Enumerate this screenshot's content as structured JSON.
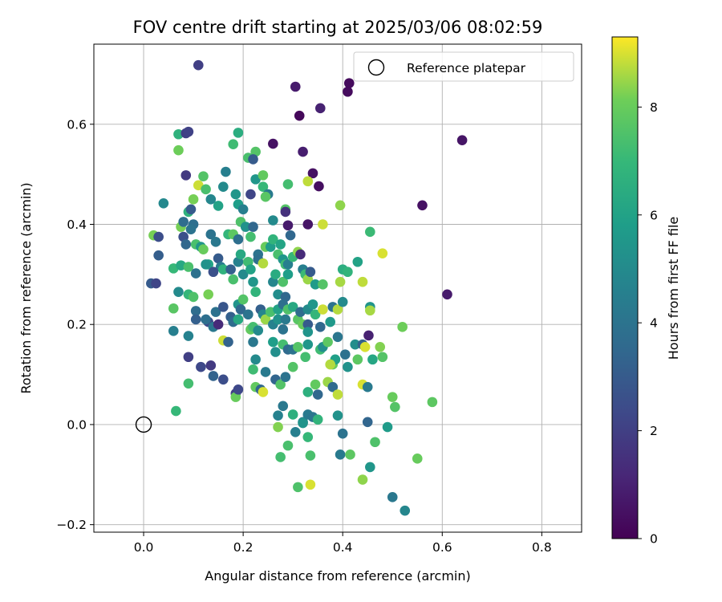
{
  "chart_data": {
    "type": "scatter",
    "title": "FOV centre drift starting at 2025/03/06 08:02:59",
    "xlabel": "Angular distance from reference (arcmin)",
    "ylabel": "Rotation from reference (arcmin)",
    "xlim": [
      -0.1,
      0.88
    ],
    "ylim": [
      -0.215,
      0.76
    ],
    "xticks": [
      0.0,
      0.2,
      0.4,
      0.6,
      0.8
    ],
    "xtick_labels": [
      "0.0",
      "0.2",
      "0.4",
      "0.6",
      "0.8"
    ],
    "yticks": [
      -0.2,
      0.0,
      0.2,
      0.4,
      0.6
    ],
    "ytick_labels": [
      "−0.2",
      "0.0",
      "0.2",
      "0.4",
      "0.6"
    ],
    "grid": true,
    "legend": {
      "label": "Reference platepar",
      "location": "top-right"
    },
    "reference_point": {
      "x": 0.0,
      "y": 0.0
    },
    "colorbar": {
      "label": "Hours from first FF file",
      "colormap": "viridis",
      "range": [
        0,
        9.3
      ],
      "ticks": [
        0,
        2,
        4,
        6,
        8
      ],
      "tick_labels": [
        "0",
        "2",
        "4",
        "6",
        "8"
      ]
    },
    "points": [
      [
        0.11,
        0.718,
        2.0
      ],
      [
        0.305,
        0.675,
        0.8
      ],
      [
        0.413,
        0.682,
        0.3
      ],
      [
        0.41,
        0.665,
        0.3
      ],
      [
        0.355,
        0.632,
        1.0
      ],
      [
        0.313,
        0.617,
        0.2
      ],
      [
        0.64,
        0.568,
        0.6
      ],
      [
        0.26,
        0.561,
        0.5
      ],
      [
        0.32,
        0.545,
        0.9
      ],
      [
        0.34,
        0.502,
        0.5
      ],
      [
        0.352,
        0.476,
        0.4
      ],
      [
        0.56,
        0.438,
        0.5
      ],
      [
        0.33,
        0.4,
        0.6
      ],
      [
        0.61,
        0.26,
        0.8
      ],
      [
        0.452,
        0.178,
        1.0
      ],
      [
        0.07,
        0.58,
        6.7
      ],
      [
        0.085,
        0.582,
        2.0
      ],
      [
        0.09,
        0.585,
        2.1
      ],
      [
        0.19,
        0.583,
        6.5
      ],
      [
        0.225,
        0.545,
        7.6
      ],
      [
        0.21,
        0.533,
        7.4
      ],
      [
        0.22,
        0.53,
        3.0
      ],
      [
        0.18,
        0.56,
        7.2
      ],
      [
        0.07,
        0.548,
        8.1
      ],
      [
        0.085,
        0.498,
        1.8
      ],
      [
        0.04,
        0.442,
        4.9
      ],
      [
        0.11,
        0.478,
        8.9
      ],
      [
        0.12,
        0.496,
        7.6
      ],
      [
        0.125,
        0.47,
        7.4
      ],
      [
        0.1,
        0.45,
        8.2
      ],
      [
        0.135,
        0.45,
        4.8
      ],
      [
        0.15,
        0.437,
        6.0
      ],
      [
        0.16,
        0.475,
        5.0
      ],
      [
        0.165,
        0.505,
        4.5
      ],
      [
        0.185,
        0.46,
        5.5
      ],
      [
        0.19,
        0.44,
        5.8
      ],
      [
        0.2,
        0.43,
        4.5
      ],
      [
        0.215,
        0.46,
        2.2
      ],
      [
        0.225,
        0.49,
        5.5
      ],
      [
        0.24,
        0.498,
        7.9
      ],
      [
        0.24,
        0.475,
        7.0
      ],
      [
        0.25,
        0.46,
        4.3
      ],
      [
        0.245,
        0.455,
        7.7
      ],
      [
        0.29,
        0.48,
        7.3
      ],
      [
        0.285,
        0.43,
        7.6
      ],
      [
        0.285,
        0.425,
        1.5
      ],
      [
        0.26,
        0.408,
        5.0
      ],
      [
        0.29,
        0.398,
        0.8
      ],
      [
        0.295,
        0.378,
        3.5
      ],
      [
        0.33,
        0.486,
        8.8
      ],
      [
        0.36,
        0.4,
        8.9
      ],
      [
        0.395,
        0.438,
        8.4
      ],
      [
        0.075,
        0.395,
        8.2
      ],
      [
        0.09,
        0.425,
        6.7
      ],
      [
        0.095,
        0.43,
        3.0
      ],
      [
        0.08,
        0.405,
        3.7
      ],
      [
        0.1,
        0.4,
        3.8
      ],
      [
        0.08,
        0.375,
        2.6
      ],
      [
        0.095,
        0.39,
        4.0
      ],
      [
        0.085,
        0.36,
        3.5
      ],
      [
        0.105,
        0.36,
        7.4
      ],
      [
        0.115,
        0.355,
        5.5
      ],
      [
        0.12,
        0.35,
        8.0
      ],
      [
        0.135,
        0.38,
        4.0
      ],
      [
        0.13,
        0.32,
        6.1
      ],
      [
        0.145,
        0.365,
        4.2
      ],
      [
        0.15,
        0.332,
        3.0
      ],
      [
        0.155,
        0.315,
        4.3
      ],
      [
        0.17,
        0.38,
        6.9
      ],
      [
        0.18,
        0.38,
        7.8
      ],
      [
        0.19,
        0.37,
        3.8
      ],
      [
        0.195,
        0.405,
        7.5
      ],
      [
        0.205,
        0.395,
        5.3
      ],
      [
        0.215,
        0.375,
        7.3
      ],
      [
        0.22,
        0.395,
        3.5
      ],
      [
        0.23,
        0.34,
        4.0
      ],
      [
        0.245,
        0.355,
        8.0
      ],
      [
        0.255,
        0.355,
        5.8
      ],
      [
        0.26,
        0.37,
        6.8
      ],
      [
        0.27,
        0.34,
        7.4
      ],
      [
        0.275,
        0.36,
        6.1
      ],
      [
        0.28,
        0.33,
        5.5
      ],
      [
        0.285,
        0.32,
        7.2
      ],
      [
        0.29,
        0.32,
        4.5
      ],
      [
        0.3,
        0.335,
        7.0
      ],
      [
        0.31,
        0.345,
        8.4
      ],
      [
        0.315,
        0.34,
        1.3
      ],
      [
        0.32,
        0.31,
        4.5
      ],
      [
        0.325,
        0.3,
        7.1
      ],
      [
        0.33,
        0.29,
        8.5
      ],
      [
        0.335,
        0.305,
        3.0
      ],
      [
        0.345,
        0.28,
        5.7
      ],
      [
        0.36,
        0.28,
        7.6
      ],
      [
        0.395,
        0.285,
        8.6
      ],
      [
        0.4,
        0.31,
        6.5
      ],
      [
        0.41,
        0.305,
        6.8
      ],
      [
        0.43,
        0.325,
        6.0
      ],
      [
        0.44,
        0.285,
        8.8
      ],
      [
        0.48,
        0.342,
        9.0
      ],
      [
        0.455,
        0.385,
        7.1
      ],
      [
        0.02,
        0.378,
        8.2
      ],
      [
        0.03,
        0.375,
        2.5
      ],
      [
        0.03,
        0.338,
        3.1
      ],
      [
        0.06,
        0.312,
        7.0
      ],
      [
        0.075,
        0.318,
        6.3
      ],
      [
        0.09,
        0.315,
        7.4
      ],
      [
        0.105,
        0.302,
        3.9
      ],
      [
        0.125,
        0.32,
        5.3
      ],
      [
        0.14,
        0.305,
        2.6
      ],
      [
        0.16,
        0.31,
        6.7
      ],
      [
        0.175,
        0.31,
        3.2
      ],
      [
        0.18,
        0.29,
        7.4
      ],
      [
        0.19,
        0.325,
        4.6
      ],
      [
        0.195,
        0.34,
        6.3
      ],
      [
        0.2,
        0.3,
        5.0
      ],
      [
        0.21,
        0.325,
        7.2
      ],
      [
        0.215,
        0.31,
        6.0
      ],
      [
        0.22,
        0.285,
        5.5
      ],
      [
        0.23,
        0.33,
        3.8
      ],
      [
        0.24,
        0.322,
        8.7
      ],
      [
        0.26,
        0.285,
        4.8
      ],
      [
        0.265,
        0.3,
        6.4
      ],
      [
        0.27,
        0.26,
        5.1
      ],
      [
        0.28,
        0.285,
        7.5
      ],
      [
        0.285,
        0.255,
        3.5
      ],
      [
        0.29,
        0.3,
        5.8
      ],
      [
        0.015,
        0.282,
        3.0
      ],
      [
        0.025,
        0.282,
        2.2
      ],
      [
        0.06,
        0.232,
        7.7
      ],
      [
        0.09,
        0.26,
        6.9
      ],
      [
        0.105,
        0.227,
        3.7
      ],
      [
        0.105,
        0.21,
        3.2
      ],
      [
        0.13,
        0.26,
        8.2
      ],
      [
        0.13,
        0.205,
        2.4
      ],
      [
        0.145,
        0.225,
        3.9
      ],
      [
        0.16,
        0.235,
        2.8
      ],
      [
        0.175,
        0.215,
        3.2
      ],
      [
        0.18,
        0.205,
        3.7
      ],
      [
        0.19,
        0.24,
        5.4
      ],
      [
        0.19,
        0.21,
        6.3
      ],
      [
        0.195,
        0.23,
        3.5
      ],
      [
        0.2,
        0.25,
        7.6
      ],
      [
        0.21,
        0.22,
        4.0
      ],
      [
        0.215,
        0.19,
        7.9
      ],
      [
        0.22,
        0.195,
        7.3
      ],
      [
        0.225,
        0.265,
        6.8
      ],
      [
        0.235,
        0.23,
        3.2
      ],
      [
        0.24,
        0.22,
        4.8
      ],
      [
        0.245,
        0.21,
        8.5
      ],
      [
        0.255,
        0.225,
        7.4
      ],
      [
        0.26,
        0.2,
        4.6
      ],
      [
        0.27,
        0.21,
        5.3
      ],
      [
        0.27,
        0.23,
        6.0
      ],
      [
        0.28,
        0.24,
        3.8
      ],
      [
        0.285,
        0.21,
        4.3
      ],
      [
        0.29,
        0.23,
        7.5
      ],
      [
        0.3,
        0.235,
        6.3
      ],
      [
        0.31,
        0.21,
        7.7
      ],
      [
        0.315,
        0.225,
        3.7
      ],
      [
        0.32,
        0.2,
        8.0
      ],
      [
        0.33,
        0.2,
        3.0
      ],
      [
        0.33,
        0.23,
        5.0
      ],
      [
        0.34,
        0.24,
        5.5
      ],
      [
        0.345,
        0.22,
        6.9
      ],
      [
        0.355,
        0.195,
        3.5
      ],
      [
        0.36,
        0.23,
        8.9
      ],
      [
        0.375,
        0.205,
        5.6
      ],
      [
        0.38,
        0.235,
        4.0
      ],
      [
        0.39,
        0.23,
        8.7
      ],
      [
        0.4,
        0.245,
        5.0
      ],
      [
        0.455,
        0.235,
        5.4
      ],
      [
        0.455,
        0.228,
        8.6
      ],
      [
        0.07,
        0.265,
        5.0
      ],
      [
        0.1,
        0.255,
        7.5
      ],
      [
        0.06,
        0.187,
        4.5
      ],
      [
        0.09,
        0.177,
        4.6
      ],
      [
        0.125,
        0.21,
        3.8
      ],
      [
        0.14,
        0.195,
        4.2
      ],
      [
        0.15,
        0.2,
        1.3
      ],
      [
        0.16,
        0.168,
        8.9
      ],
      [
        0.17,
        0.165,
        3.3
      ],
      [
        0.22,
        0.165,
        4.2
      ],
      [
        0.225,
        0.13,
        5.0
      ],
      [
        0.245,
        0.105,
        4.3
      ],
      [
        0.23,
        0.188,
        5.0
      ],
      [
        0.26,
        0.165,
        5.8
      ],
      [
        0.265,
        0.145,
        5.2
      ],
      [
        0.28,
        0.16,
        7.3
      ],
      [
        0.28,
        0.19,
        4.0
      ],
      [
        0.29,
        0.15,
        3.6
      ],
      [
        0.3,
        0.15,
        4.0
      ],
      [
        0.31,
        0.155,
        7.6
      ],
      [
        0.325,
        0.135,
        7.3
      ],
      [
        0.33,
        0.185,
        5.4
      ],
      [
        0.33,
        0.16,
        5.5
      ],
      [
        0.355,
        0.15,
        7.2
      ],
      [
        0.36,
        0.155,
        5.2
      ],
      [
        0.37,
        0.165,
        7.8
      ],
      [
        0.38,
        0.12,
        8.0
      ],
      [
        0.385,
        0.13,
        5.9
      ],
      [
        0.39,
        0.175,
        4.1
      ],
      [
        0.405,
        0.14,
        3.9
      ],
      [
        0.41,
        0.115,
        5.3
      ],
      [
        0.425,
        0.16,
        5.1
      ],
      [
        0.43,
        0.13,
        7.8
      ],
      [
        0.44,
        0.16,
        3.3
      ],
      [
        0.445,
        0.155,
        9.0
      ],
      [
        0.46,
        0.13,
        6.2
      ],
      [
        0.475,
        0.155,
        8.3
      ],
      [
        0.48,
        0.135,
        7.6
      ],
      [
        0.52,
        0.195,
        8.1
      ],
      [
        0.09,
        0.135,
        2.0
      ],
      [
        0.09,
        0.082,
        7.3
      ],
      [
        0.115,
        0.115,
        2.3
      ],
      [
        0.135,
        0.118,
        1.8
      ],
      [
        0.14,
        0.097,
        3.3
      ],
      [
        0.16,
        0.09,
        2.5
      ],
      [
        0.185,
        0.062,
        2.0
      ],
      [
        0.185,
        0.055,
        8.0
      ],
      [
        0.19,
        0.07,
        2.3
      ],
      [
        0.22,
        0.11,
        7.2
      ],
      [
        0.225,
        0.075,
        7.9
      ],
      [
        0.235,
        0.07,
        3.5
      ],
      [
        0.24,
        0.065,
        9.0
      ],
      [
        0.265,
        0.09,
        3.4
      ],
      [
        0.275,
        0.08,
        7.6
      ],
      [
        0.285,
        0.095,
        4.0
      ],
      [
        0.3,
        0.115,
        7.6
      ],
      [
        0.33,
        0.065,
        6.6
      ],
      [
        0.345,
        0.08,
        7.9
      ],
      [
        0.35,
        0.06,
        3.5
      ],
      [
        0.37,
        0.085,
        8.5
      ],
      [
        0.375,
        0.12,
        8.7
      ],
      [
        0.38,
        0.075,
        3.6
      ],
      [
        0.39,
        0.06,
        8.8
      ],
      [
        0.44,
        0.08,
        9.0
      ],
      [
        0.45,
        0.075,
        4.3
      ],
      [
        0.5,
        0.055,
        8.0
      ],
      [
        0.505,
        0.035,
        7.6
      ],
      [
        0.58,
        0.045,
        7.8
      ],
      [
        0.065,
        0.027,
        7.0
      ],
      [
        0.28,
        0.037,
        4.2
      ],
      [
        0.27,
        0.018,
        4.6
      ],
      [
        0.3,
        0.02,
        6.6
      ],
      [
        0.32,
        0.005,
        4.8
      ],
      [
        0.32,
        0.003,
        5.4
      ],
      [
        0.33,
        0.02,
        4.3
      ],
      [
        0.34,
        0.015,
        4.1
      ],
      [
        0.35,
        0.01,
        6.8
      ],
      [
        0.39,
        0.018,
        5.3
      ],
      [
        0.27,
        -0.005,
        8.3
      ],
      [
        0.305,
        -0.015,
        4.5
      ],
      [
        0.33,
        -0.025,
        7.0
      ],
      [
        0.4,
        -0.018,
        4.0
      ],
      [
        0.45,
        0.005,
        3.4
      ],
      [
        0.465,
        -0.035,
        7.5
      ],
      [
        0.49,
        -0.005,
        5.7
      ],
      [
        0.29,
        -0.042,
        7.4
      ],
      [
        0.275,
        -0.065,
        7.3
      ],
      [
        0.335,
        -0.062,
        7.4
      ],
      [
        0.395,
        -0.06,
        4.3
      ],
      [
        0.415,
        -0.06,
        7.8
      ],
      [
        0.455,
        -0.085,
        5.5
      ],
      [
        0.55,
        -0.068,
        8.0
      ],
      [
        0.44,
        -0.11,
        8.4
      ],
      [
        0.31,
        -0.125,
        7.5
      ],
      [
        0.335,
        -0.12,
        9.0
      ],
      [
        0.5,
        -0.145,
        4.2
      ],
      [
        0.525,
        -0.172,
        4.8
      ]
    ]
  }
}
